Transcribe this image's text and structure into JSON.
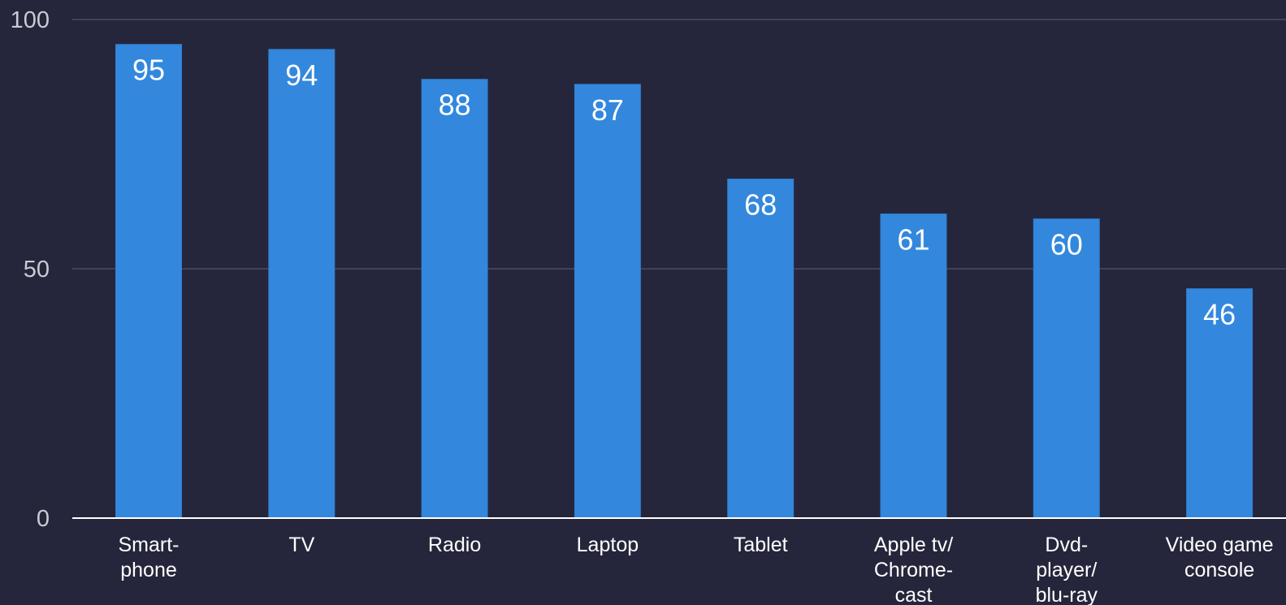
{
  "chart_data": {
    "type": "bar",
    "categories": [
      [
        "Smart-",
        "phone"
      ],
      [
        "TV"
      ],
      [
        "Radio"
      ],
      [
        "Laptop"
      ],
      [
        "Tablet"
      ],
      [
        "Apple tv/",
        "Chrome-",
        "cast"
      ],
      [
        "Dvd-",
        "player/",
        "blu-ray"
      ],
      [
        "Video game",
        "console"
      ]
    ],
    "values": [
      95,
      94,
      88,
      87,
      68,
      61,
      60,
      46
    ],
    "title": "",
    "xlabel": "",
    "ylabel": "",
    "ylim": [
      0,
      100
    ],
    "yticks": [
      0,
      50,
      100
    ],
    "grid": true,
    "legend": "none",
    "colors": {
      "background": "#25263b",
      "bar": "#3388dd",
      "bar_edge": "#2f7fd0",
      "gridline": "#4a4b5e",
      "baseline": "#ffffff",
      "tick_text": "#c9cad3",
      "label_text": "#ffffff"
    }
  }
}
